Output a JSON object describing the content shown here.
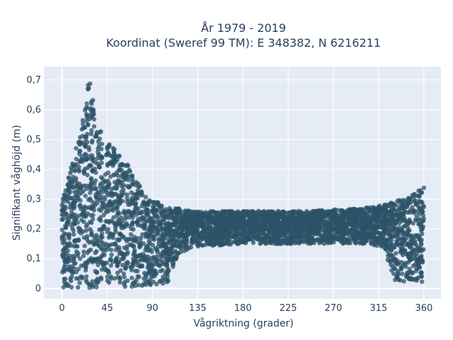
{
  "chart_data": {
    "type": "scatter",
    "title_line1": "År 1979 - 2019",
    "title_line2": "Koordinat (Sweref 99 TM): E 348382, N 6216211",
    "xlabel": "Vågriktning (grader)",
    "ylabel": "Signifikant våghöjd (m)",
    "xlim": [
      -18,
      377
    ],
    "ylim": [
      -0.035,
      0.745
    ],
    "x_ticks": [
      0,
      45,
      90,
      135,
      180,
      225,
      270,
      315,
      360
    ],
    "x_tick_labels": [
      "0",
      "45",
      "90",
      "135",
      "180",
      "225",
      "270",
      "315",
      "360"
    ],
    "y_ticks": [
      0,
      0.1,
      0.2,
      0.3,
      0.4,
      0.5,
      0.6,
      0.7
    ],
    "y_tick_labels": [
      "0",
      "0,1",
      "0,2",
      "0,3",
      "0,4",
      "0,5",
      "0,6",
      "0,7"
    ],
    "grid": true,
    "marker_color": "#2c5368",
    "background_color": "#e5ecf6",
    "envelope": {
      "description_points": [
        {
          "x": 0,
          "ymin": 0.0,
          "ymax": 0.3
        },
        {
          "x": 10,
          "ymin": 0.0,
          "ymax": 0.42
        },
        {
          "x": 20,
          "ymin": 0.0,
          "ymax": 0.55
        },
        {
          "x": 27,
          "ymin": 0.0,
          "ymax": 0.71
        },
        {
          "x": 35,
          "ymin": 0.0,
          "ymax": 0.55
        },
        {
          "x": 45,
          "ymin": 0.0,
          "ymax": 0.49
        },
        {
          "x": 55,
          "ymin": 0.0,
          "ymax": 0.46
        },
        {
          "x": 65,
          "ymin": 0.0,
          "ymax": 0.42
        },
        {
          "x": 75,
          "ymin": 0.0,
          "ymax": 0.36
        },
        {
          "x": 85,
          "ymin": 0.0,
          "ymax": 0.3
        },
        {
          "x": 95,
          "ymin": 0.0,
          "ymax": 0.29
        },
        {
          "x": 105,
          "ymin": 0.02,
          "ymax": 0.27
        },
        {
          "x": 115,
          "ymin": 0.1,
          "ymax": 0.27
        },
        {
          "x": 130,
          "ymin": 0.14,
          "ymax": 0.26
        },
        {
          "x": 180,
          "ymin": 0.15,
          "ymax": 0.26
        },
        {
          "x": 240,
          "ymin": 0.15,
          "ymax": 0.26
        },
        {
          "x": 300,
          "ymin": 0.15,
          "ymax": 0.27
        },
        {
          "x": 320,
          "ymin": 0.14,
          "ymax": 0.28
        },
        {
          "x": 330,
          "ymin": 0.03,
          "ymax": 0.29
        },
        {
          "x": 345,
          "ymin": 0.02,
          "ymax": 0.31
        },
        {
          "x": 360,
          "ymin": 0.0,
          "ymax": 0.34
        }
      ]
    }
  }
}
